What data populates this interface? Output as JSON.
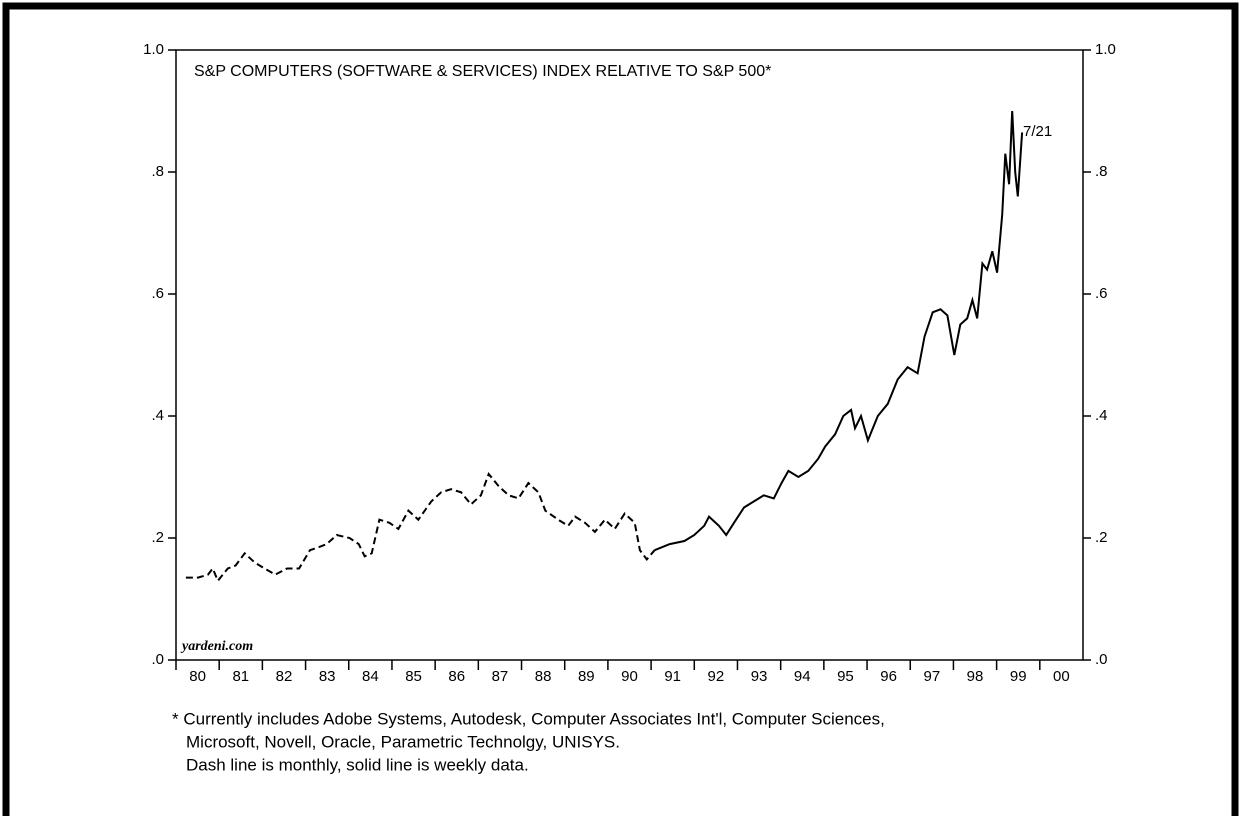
{
  "chart_data": {
    "type": "line",
    "title": "S&P COMPUTERS (SOFTWARE & SERVICES) INDEX RELATIVE TO S&P 500*",
    "annotations": [
      "7/21",
      "yardeni.com"
    ],
    "notes": [
      "* Currently includes Adobe Systems, Autodesk, Computer Associates Int'l, Computer Sciences,",
      "Microsoft, Novell, Oracle, Parametric Technolgy, UNISYS.",
      "Dash line is monthly, solid line is weekly data."
    ],
    "xlim": [
      1980,
      2001
    ],
    "xticks": [
      {
        "value": 1980,
        "label": "80"
      },
      {
        "value": 1981,
        "label": "81"
      },
      {
        "value": 1982,
        "label": "82"
      },
      {
        "value": 1983,
        "label": "83"
      },
      {
        "value": 1984,
        "label": "84"
      },
      {
        "value": 1985,
        "label": "85"
      },
      {
        "value": 1986,
        "label": "86"
      },
      {
        "value": 1987,
        "label": "87"
      },
      {
        "value": 1988,
        "label": "88"
      },
      {
        "value": 1989,
        "label": "89"
      },
      {
        "value": 1990,
        "label": "90"
      },
      {
        "value": 1991,
        "label": "91"
      },
      {
        "value": 1992,
        "label": "92"
      },
      {
        "value": 1993,
        "label": "93"
      },
      {
        "value": 1994,
        "label": "94"
      },
      {
        "value": 1995,
        "label": "95"
      },
      {
        "value": 1996,
        "label": "96"
      },
      {
        "value": 1997,
        "label": "97"
      },
      {
        "value": 1998,
        "label": "98"
      },
      {
        "value": 1999,
        "label": "99"
      },
      {
        "value": 2000,
        "label": "00"
      }
    ],
    "ylim": [
      0,
      1
    ],
    "yticks": [
      {
        "value": 0,
        "label": ".0"
      },
      {
        "value": 0.2,
        "label": ".2"
      },
      {
        "value": 0.4,
        "label": ".4"
      },
      {
        "value": 0.6,
        "label": ".6"
      },
      {
        "value": 0.8,
        "label": ".8"
      },
      {
        "value": 1,
        "label": "1.0"
      }
    ],
    "series": [
      {
        "name": "Monthly",
        "color": "#000000",
        "line_style": "dashed",
        "x": [
          1980.23,
          1980.51,
          1980.74,
          1980.85,
          1980.97,
          1981.2,
          1981.38,
          1981.59,
          1981.82,
          1982.05,
          1982.3,
          1982.57,
          1982.85,
          1983.1,
          1983.31,
          1983.49,
          1983.72,
          1984.02,
          1984.23,
          1984.37,
          1984.53,
          1984.71,
          1984.94,
          1985.15,
          1985.38,
          1985.61,
          1985.91,
          1986.14,
          1986.37,
          1986.6,
          1986.83,
          1987.06,
          1987.24,
          1987.47,
          1987.7,
          1987.93,
          1988.16,
          1988.39,
          1988.55,
          1988.85,
          1989.08,
          1989.24,
          1989.47,
          1989.7,
          1989.93,
          1990.16,
          1990.39,
          1990.62,
          1990.74,
          1990.9,
          1991.08
        ],
        "values": [
          0.135,
          0.135,
          0.14,
          0.15,
          0.13,
          0.15,
          0.155,
          0.175,
          0.16,
          0.15,
          0.14,
          0.15,
          0.15,
          0.18,
          0.185,
          0.19,
          0.205,
          0.2,
          0.19,
          0.17,
          0.175,
          0.23,
          0.225,
          0.215,
          0.245,
          0.23,
          0.26,
          0.275,
          0.28,
          0.275,
          0.255,
          0.27,
          0.305,
          0.285,
          0.27,
          0.265,
          0.29,
          0.275,
          0.245,
          0.23,
          0.22,
          0.235,
          0.225,
          0.21,
          0.23,
          0.215,
          0.24,
          0.225,
          0.18,
          0.165,
          0.18
        ]
      },
      {
        "name": "Weekly",
        "color": "#000000",
        "line_style": "solid",
        "x": [
          1991.08,
          1991.43,
          1991.77,
          1992.0,
          1992.23,
          1992.34,
          1992.57,
          1992.74,
          1992.92,
          1993.15,
          1993.38,
          1993.61,
          1993.84,
          1994.02,
          1994.18,
          1994.41,
          1994.64,
          1994.87,
          1995.03,
          1995.26,
          1995.45,
          1995.63,
          1995.72,
          1995.86,
          1996.02,
          1996.25,
          1996.48,
          1996.71,
          1996.94,
          1997.17,
          1997.33,
          1997.52,
          1997.7,
          1997.86,
          1998.02,
          1998.16,
          1998.32,
          1998.44,
          1998.55,
          1998.67,
          1998.78,
          1998.9,
          1999.01,
          1999.13,
          1999.2,
          1999.29,
          1999.36,
          1999.43,
          1999.49,
          1999.59
        ],
        "values": [
          0.18,
          0.19,
          0.195,
          0.205,
          0.22,
          0.235,
          0.22,
          0.205,
          0.225,
          0.25,
          0.26,
          0.27,
          0.265,
          0.29,
          0.31,
          0.3,
          0.31,
          0.33,
          0.35,
          0.37,
          0.4,
          0.41,
          0.38,
          0.4,
          0.36,
          0.4,
          0.42,
          0.46,
          0.48,
          0.47,
          0.53,
          0.57,
          0.575,
          0.565,
          0.5,
          0.55,
          0.56,
          0.59,
          0.56,
          0.65,
          0.64,
          0.67,
          0.635,
          0.73,
          0.83,
          0.78,
          0.9,
          0.8,
          0.76,
          0.865
        ]
      }
    ]
  }
}
